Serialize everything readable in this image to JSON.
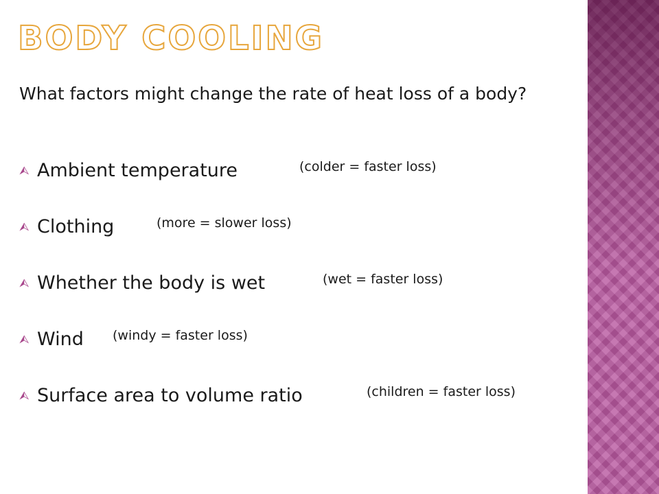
{
  "title": "Body cooling",
  "question": "What factors might change the rate of heat loss of a body?",
  "bullet_icon": "circled-arrow-bullet-icon",
  "colors": {
    "accent": "#e7a63c",
    "bullet": "#a8478c",
    "side_band": "#b8589f"
  },
  "factors": [
    {
      "label": "Ambient temperature",
      "note": "(colder = faster loss)"
    },
    {
      "label": "Clothing",
      "note": "(more = slower loss)"
    },
    {
      "label": "Whether the body is wet",
      "note": "(wet = faster loss)"
    },
    {
      "label": "Wind",
      "note": "(windy = faster loss)"
    },
    {
      "label": "Surface area to volume ratio",
      "note": "(children = faster loss)"
    }
  ]
}
